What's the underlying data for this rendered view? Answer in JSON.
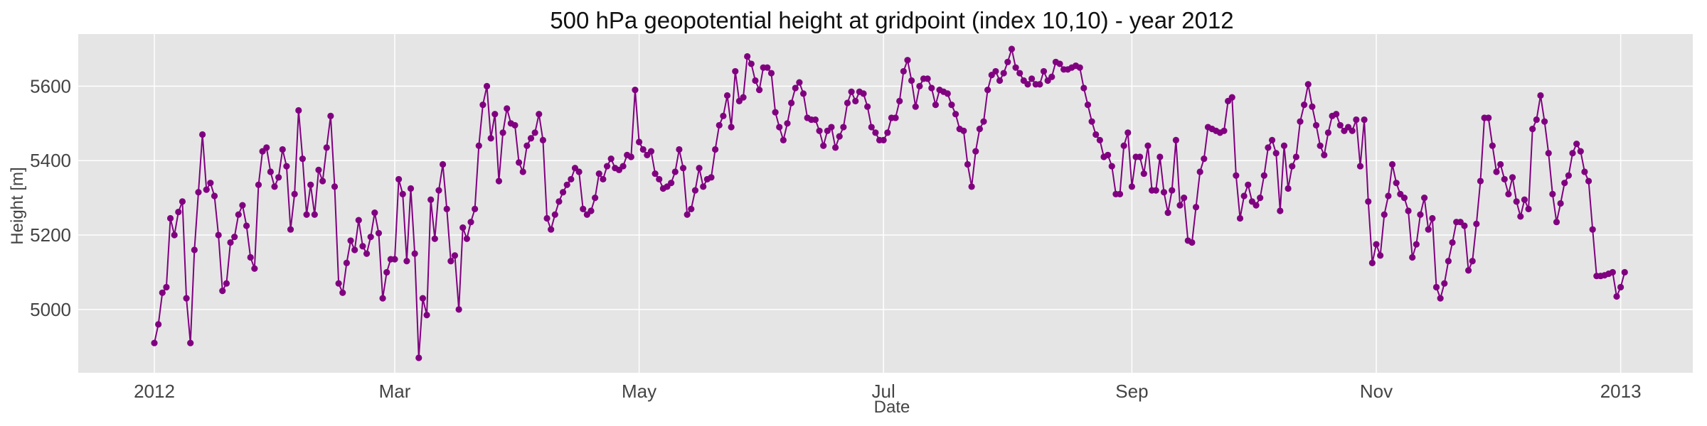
{
  "chart_data": {
    "type": "line",
    "title": "500 hPa geopotential height at gridpoint (index 10,10) - year 2012",
    "xlabel": "Date",
    "ylabel": "Height [m]",
    "x_tick_labels": [
      "2012",
      "Mar",
      "May",
      "Jul",
      "Sep",
      "Nov",
      "2013"
    ],
    "x_tick_dates": [
      "2012-01-01",
      "2012-03-01",
      "2012-05-01",
      "2012-07-01",
      "2012-09-01",
      "2012-11-01",
      "2013-01-01"
    ],
    "y_ticks": [
      5000,
      5200,
      5400,
      5600
    ],
    "y_tick_labels": [
      "5000",
      "5200",
      "5400",
      "5600"
    ],
    "xlim": [
      "2011-12-13",
      "2013-01-19"
    ],
    "ylim": [
      4830,
      5740
    ],
    "grid": true,
    "marker": "circle",
    "colors": {
      "series": "#800080",
      "plot_background": "#e5e5e5",
      "grid": "#ffffff"
    },
    "series": [
      {
        "start_date": "2012-01-01",
        "step_days": 1,
        "values": [
          4910,
          4960,
          5045,
          5060,
          5245,
          5200,
          5262,
          5290,
          5030,
          4910,
          5160,
          5315,
          5470,
          5322,
          5340,
          5305,
          5200,
          5050,
          5070,
          5180,
          5195,
          5255,
          5280,
          5225,
          5140,
          5110,
          5335,
          5425,
          5435,
          5370,
          5330,
          5355,
          5430,
          5385,
          5215,
          5310,
          5535,
          5405,
          5255,
          5335,
          5255,
          5375,
          5345,
          5435,
          5520,
          5330,
          5070,
          5045,
          5125,
          5185,
          5160,
          5240,
          5170,
          5150,
          5195,
          5260,
          5205,
          5030,
          5100,
          5135,
          5135,
          5350,
          5310,
          5130,
          5325,
          5150,
          4870,
          5030,
          4985,
          5295,
          5190,
          5320,
          5390,
          5270,
          5130,
          5145,
          5000,
          5220,
          5190,
          5235,
          5270,
          5440,
          5550,
          5600,
          5460,
          5525,
          5345,
          5475,
          5540,
          5500,
          5495,
          5395,
          5370,
          5440,
          5460,
          5475,
          5525,
          5455,
          5245,
          5215,
          5255,
          5290,
          5315,
          5335,
          5350,
          5380,
          5370,
          5270,
          5255,
          5265,
          5300,
          5365,
          5350,
          5385,
          5405,
          5380,
          5375,
          5385,
          5415,
          5410,
          5590,
          5450,
          5430,
          5415,
          5425,
          5365,
          5350,
          5325,
          5330,
          5340,
          5370,
          5430,
          5380,
          5255,
          5270,
          5320,
          5380,
          5330,
          5350,
          5355,
          5430,
          5495,
          5520,
          5575,
          5490,
          5640,
          5560,
          5570,
          5680,
          5660,
          5615,
          5590,
          5650,
          5650,
          5635,
          5530,
          5490,
          5455,
          5500,
          5555,
          5595,
          5610,
          5580,
          5515,
          5510,
          5510,
          5480,
          5440,
          5480,
          5490,
          5435,
          5465,
          5490,
          5555,
          5585,
          5560,
          5585,
          5580,
          5545,
          5490,
          5475,
          5455,
          5455,
          5475,
          5515,
          5515,
          5560,
          5640,
          5670,
          5615,
          5545,
          5600,
          5620,
          5620,
          5595,
          5550,
          5590,
          5585,
          5580,
          5550,
          5525,
          5485,
          5480,
          5390,
          5330,
          5425,
          5485,
          5505,
          5590,
          5630,
          5640,
          5615,
          5635,
          5665,
          5700,
          5650,
          5635,
          5615,
          5605,
          5620,
          5605,
          5605,
          5640,
          5615,
          5625,
          5665,
          5660,
          5645,
          5645,
          5650,
          5655,
          5650,
          5595,
          5550,
          5505,
          5470,
          5455,
          5410,
          5415,
          5385,
          5310,
          5310,
          5440,
          5475,
          5330,
          5410,
          5410,
          5365,
          5440,
          5320,
          5320,
          5410,
          5315,
          5260,
          5320,
          5455,
          5280,
          5300,
          5185,
          5180,
          5275,
          5370,
          5405,
          5490,
          5485,
          5480,
          5475,
          5480,
          5560,
          5570,
          5360,
          5245,
          5305,
          5335,
          5290,
          5280,
          5300,
          5360,
          5435,
          5455,
          5420,
          5265,
          5440,
          5325,
          5385,
          5410,
          5505,
          5550,
          5605,
          5545,
          5495,
          5440,
          5415,
          5475,
          5520,
          5525,
          5495,
          5480,
          5490,
          5480,
          5510,
          5385,
          5510,
          5290,
          5125,
          5175,
          5145,
          5255,
          5305,
          5390,
          5340,
          5310,
          5300,
          5265,
          5140,
          5175,
          5255,
          5300,
          5215,
          5245,
          5060,
          5030,
          5070,
          5130,
          5180,
          5235,
          5235,
          5225,
          5105,
          5130,
          5230,
          5345,
          5515,
          5515,
          5440,
          5370,
          5390,
          5350,
          5310,
          5355,
          5290,
          5250,
          5295,
          5270,
          5485,
          5510,
          5575,
          5505,
          5420,
          5310,
          5235,
          5285,
          5340,
          5360,
          5420,
          5445,
          5425,
          5370,
          5345,
          5215,
          5090,
          5090,
          5092,
          5096,
          5100,
          5035,
          5060,
          5100
        ]
      }
    ]
  }
}
